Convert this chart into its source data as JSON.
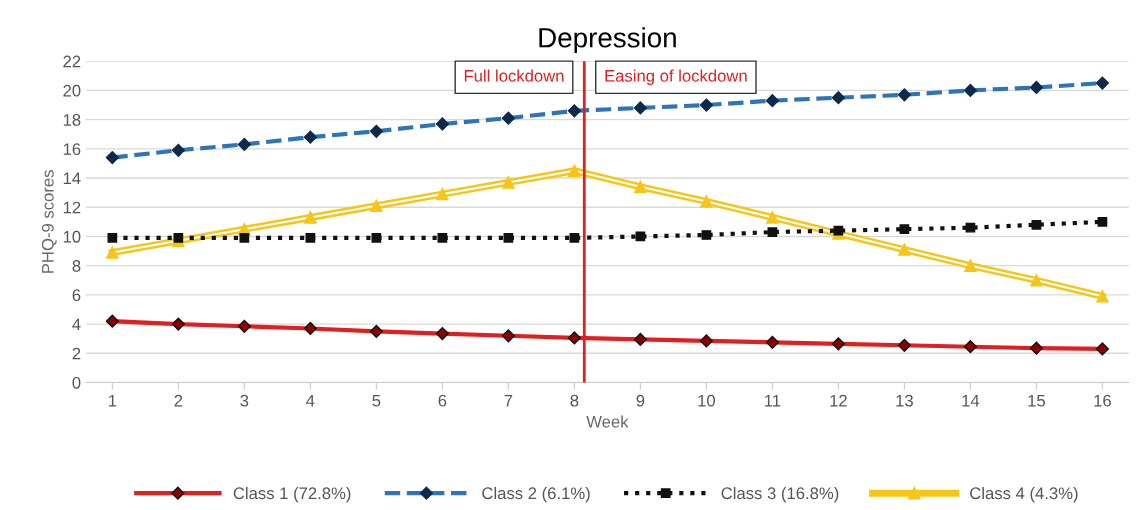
{
  "chart_data": {
    "type": "line",
    "title": "Depression",
    "xlabel": "Week",
    "ylabel": "PHQ-9 scores",
    "x": [
      1,
      2,
      3,
      4,
      5,
      6,
      7,
      8,
      9,
      10,
      11,
      12,
      13,
      14,
      15,
      16
    ],
    "series": [
      {
        "name": "Class 1 (72.8%)",
        "color": "#e02020",
        "marker": "diamond",
        "line_style": "solid",
        "values": [
          4.2,
          4.0,
          3.85,
          3.7,
          3.5,
          3.35,
          3.2,
          3.05,
          2.95,
          2.85,
          2.75,
          2.65,
          2.55,
          2.45,
          2.35,
          2.3
        ]
      },
      {
        "name": "Class 2 (6.1%)",
        "color": "#2e75b6",
        "marker": "diamond",
        "line_style": "dashed",
        "values": [
          15.4,
          15.9,
          16.3,
          16.8,
          17.2,
          17.7,
          18.1,
          18.6,
          18.8,
          19.0,
          19.3,
          19.5,
          19.7,
          20.0,
          20.2,
          20.5
        ]
      },
      {
        "name": "Class 3 (16.8%)",
        "color": "#111111",
        "marker": "square",
        "line_style": "dotted",
        "values": [
          9.9,
          9.9,
          9.9,
          9.9,
          9.9,
          9.9,
          9.9,
          9.9,
          10.0,
          10.1,
          10.3,
          10.4,
          10.5,
          10.6,
          10.8,
          11.0
        ]
      },
      {
        "name": "Class 4 (4.3%)",
        "color": "#f5c518",
        "marker": "triangle",
        "line_style": "solid",
        "values": [
          8.9,
          9.7,
          10.5,
          11.3,
          12.1,
          12.9,
          13.7,
          14.5,
          13.4,
          12.4,
          11.3,
          10.2,
          9.1,
          8.0,
          7.0,
          5.9
        ]
      }
    ],
    "xlim": [
      0.6,
      16.4
    ],
    "xticks": [
      1,
      2,
      3,
      4,
      5,
      6,
      7,
      8,
      9,
      10,
      11,
      12,
      13,
      14,
      15,
      16
    ],
    "ylim": [
      0,
      22
    ],
    "yticks": [
      0,
      2,
      4,
      6,
      8,
      10,
      12,
      14,
      16,
      18,
      20,
      22
    ],
    "ref_lines": [
      {
        "axis": "x",
        "value": 8.15,
        "color": "#e02020"
      }
    ],
    "annotations": [
      "Full lockdown",
      "Easing of lockdown"
    ],
    "grid": "y",
    "legend": "bottom"
  }
}
